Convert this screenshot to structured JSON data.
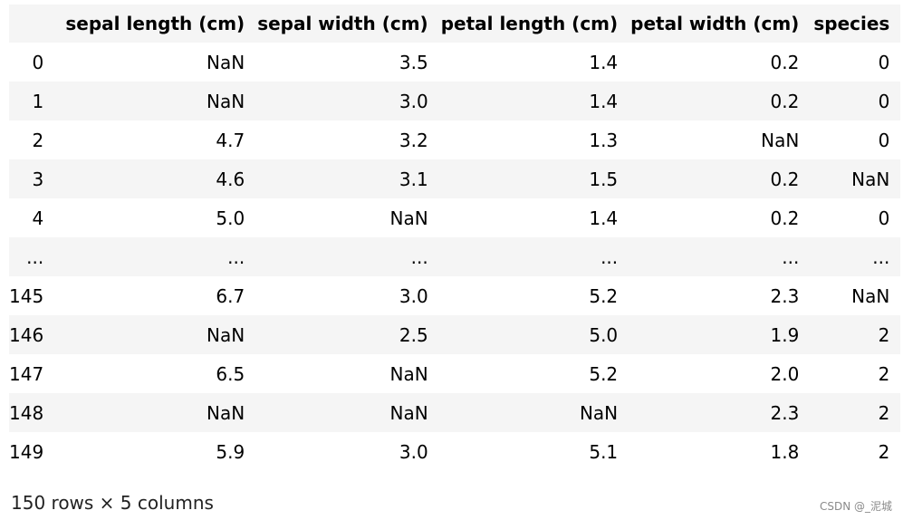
{
  "columns": [
    "",
    "sepal length (cm)",
    "sepal width (cm)",
    "petal length (cm)",
    "petal width (cm)",
    "species"
  ],
  "rows": [
    [
      "0",
      "NaN",
      "3.5",
      "1.4",
      "0.2",
      "0"
    ],
    [
      "1",
      "NaN",
      "3.0",
      "1.4",
      "0.2",
      "0"
    ],
    [
      "2",
      "4.7",
      "3.2",
      "1.3",
      "NaN",
      "0"
    ],
    [
      "3",
      "4.6",
      "3.1",
      "1.5",
      "0.2",
      "NaN"
    ],
    [
      "4",
      "5.0",
      "NaN",
      "1.4",
      "0.2",
      "0"
    ],
    [
      "...",
      "...",
      "...",
      "...",
      "...",
      "..."
    ],
    [
      "145",
      "6.7",
      "3.0",
      "5.2",
      "2.3",
      "NaN"
    ],
    [
      "146",
      "NaN",
      "2.5",
      "5.0",
      "1.9",
      "2"
    ],
    [
      "147",
      "6.5",
      "NaN",
      "5.2",
      "2.0",
      "2"
    ],
    [
      "148",
      "NaN",
      "NaN",
      "NaN",
      "2.3",
      "2"
    ],
    [
      "149",
      "5.9",
      "3.0",
      "5.1",
      "1.8",
      "2"
    ]
  ],
  "shape_note": "150 rows × 5 columns",
  "watermark": "CSDN @_泥城"
}
